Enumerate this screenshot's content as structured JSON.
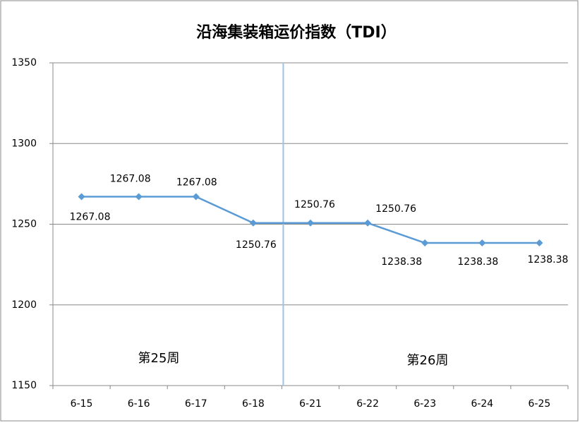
{
  "chart_data": {
    "type": "line",
    "title": "沿海集装箱运价指数（TDI）",
    "categories": [
      "6-15",
      "6-16",
      "6-17",
      "6-18",
      "6-21",
      "6-22",
      "6-23",
      "6-24",
      "6-25"
    ],
    "values": [
      1267.08,
      1267.08,
      1267.08,
      1250.76,
      1250.76,
      1250.76,
      1238.38,
      1238.38,
      1238.38
    ],
    "color": "#5b9bd5",
    "ylim": [
      1150,
      1350
    ],
    "yticks": [
      1150,
      1200,
      1250,
      1300,
      1350
    ],
    "grid": true,
    "annotations": [
      "第25周",
      "第26周"
    ]
  }
}
